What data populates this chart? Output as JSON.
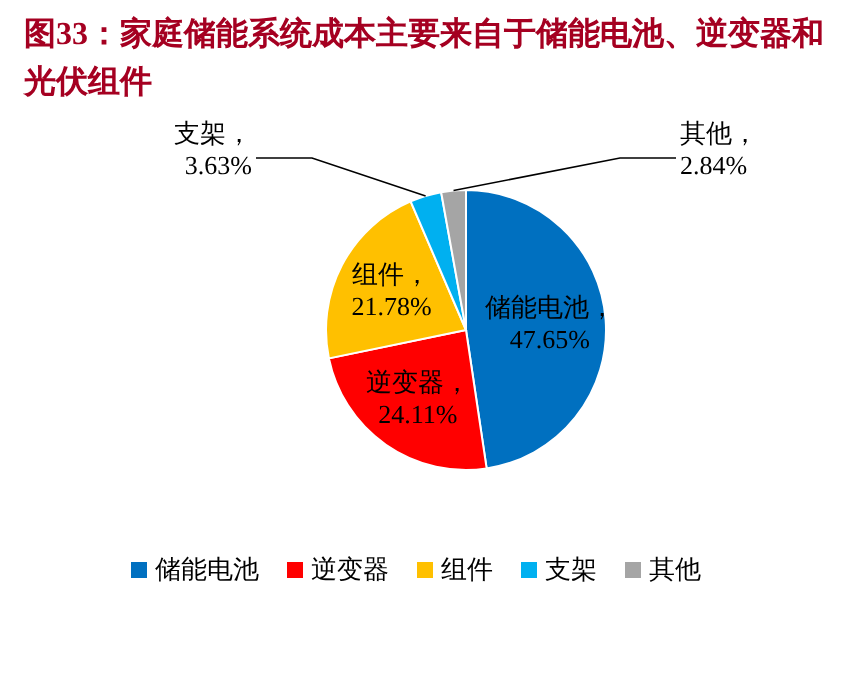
{
  "chart_data": {
    "type": "pie",
    "title": "图33：家庭储能系统成本主要来自于储能电池、逆变器和光伏组件",
    "categories": [
      "储能电池",
      "逆变器",
      "组件",
      "支架",
      "其他"
    ],
    "values": [
      47.65,
      24.11,
      21.78,
      3.63,
      2.84
    ],
    "colors": [
      "#0070c0",
      "#ff0000",
      "#ffc000",
      "#00b0f0",
      "#a5a5a5"
    ],
    "value_labels": [
      "储能电池，47.65%",
      "逆变器，24.11%",
      "组件，21.78%",
      "支架，3.63%",
      "其他，2.84%"
    ],
    "legend": "bottom"
  }
}
